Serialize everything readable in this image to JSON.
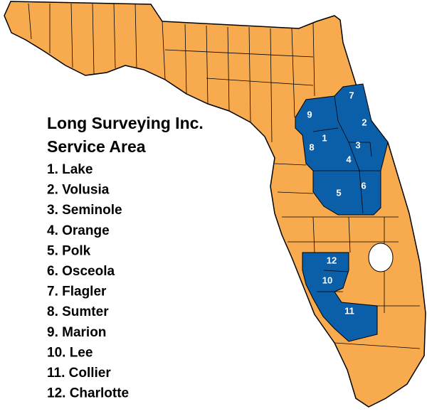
{
  "title": [
    "Long Surveying Inc.",
    "Service Area"
  ],
  "legend": [
    "1. Lake",
    "2. Volusia",
    "3. Seminole",
    "4. Orange",
    "5. Polk",
    "6. Osceola",
    "7. Flagler",
    "8. Sumter",
    "9. Marion",
    "10. Lee",
    "11. Collier",
    "12. Charlotte"
  ],
  "map_labels": [
    "1",
    "2",
    "3",
    "4",
    "5",
    "6",
    "7",
    "8",
    "9",
    "10",
    "11",
    "12"
  ]
}
